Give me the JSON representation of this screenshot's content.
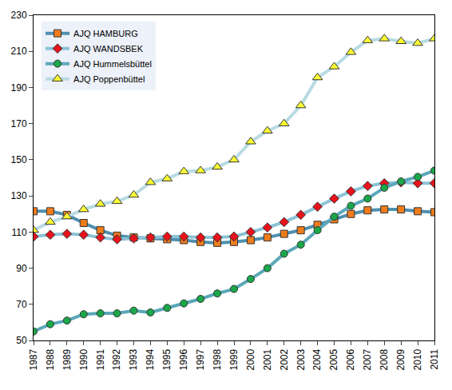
{
  "chart_data": {
    "type": "line",
    "x": [
      1987,
      1988,
      1989,
      1990,
      1991,
      1992,
      1993,
      1994,
      1995,
      1996,
      1997,
      1998,
      1999,
      2000,
      2001,
      2002,
      2003,
      2004,
      2005,
      2006,
      2007,
      2008,
      2009,
      2010,
      2011
    ],
    "series": [
      {
        "name": "AJQ HAMBURG",
        "color": "#f07c1c",
        "marker": "square",
        "values": [
          121.5,
          121.5,
          119.5,
          115,
          111,
          108,
          107,
          106.5,
          106,
          105.5,
          104.5,
          104,
          104.5,
          105.5,
          107,
          109,
          111,
          114,
          117,
          120,
          122,
          122.5,
          122.5,
          121.5,
          121
        ]
      },
      {
        "name": "AJQ WANDSBEK",
        "color": "#e8141c",
        "marker": "diamond",
        "values": [
          107.5,
          108.5,
          109,
          108.5,
          107,
          106,
          106.5,
          107,
          107.5,
          107.5,
          107,
          107,
          107.5,
          110,
          112.5,
          115.5,
          119.5,
          124,
          128.5,
          132.5,
          135.5,
          137,
          137.5,
          137,
          137
        ]
      },
      {
        "name": "AJQ Hummelsbüttel",
        "color": "#1aa84a",
        "marker": "circle",
        "values": [
          55,
          59,
          61,
          64.5,
          65,
          65,
          66.5,
          65.5,
          68,
          70.5,
          73,
          76,
          78.5,
          84,
          90,
          98,
          103,
          111,
          118.5,
          124.5,
          128.5,
          134.5,
          138,
          140.5,
          144
        ]
      },
      {
        "name": "AJQ Poppenbüttel",
        "color": "#ffff33",
        "marker": "triangle-up",
        "values": [
          111,
          115.5,
          118.5,
          122.5,
          125.5,
          127,
          130.5,
          137.5,
          139.5,
          143.5,
          144,
          146,
          150,
          160,
          166,
          170,
          180,
          195.5,
          201.5,
          209.5,
          216,
          217,
          215.5,
          214.5,
          217
        ]
      }
    ],
    "xlim": [
      1987,
      2011
    ],
    "xticks": [
      1987,
      1988,
      1989,
      1990,
      1991,
      1992,
      1993,
      1994,
      1995,
      1996,
      1997,
      1998,
      1999,
      2000,
      2001,
      2002,
      2003,
      2004,
      2005,
      2006,
      2007,
      2008,
      2009,
      2010,
      2011
    ],
    "ylim": [
      50,
      230
    ],
    "yticks": [
      50,
      70,
      90,
      110,
      130,
      150,
      170,
      190,
      210,
      230
    ],
    "grid": false,
    "legend": "top-left"
  }
}
